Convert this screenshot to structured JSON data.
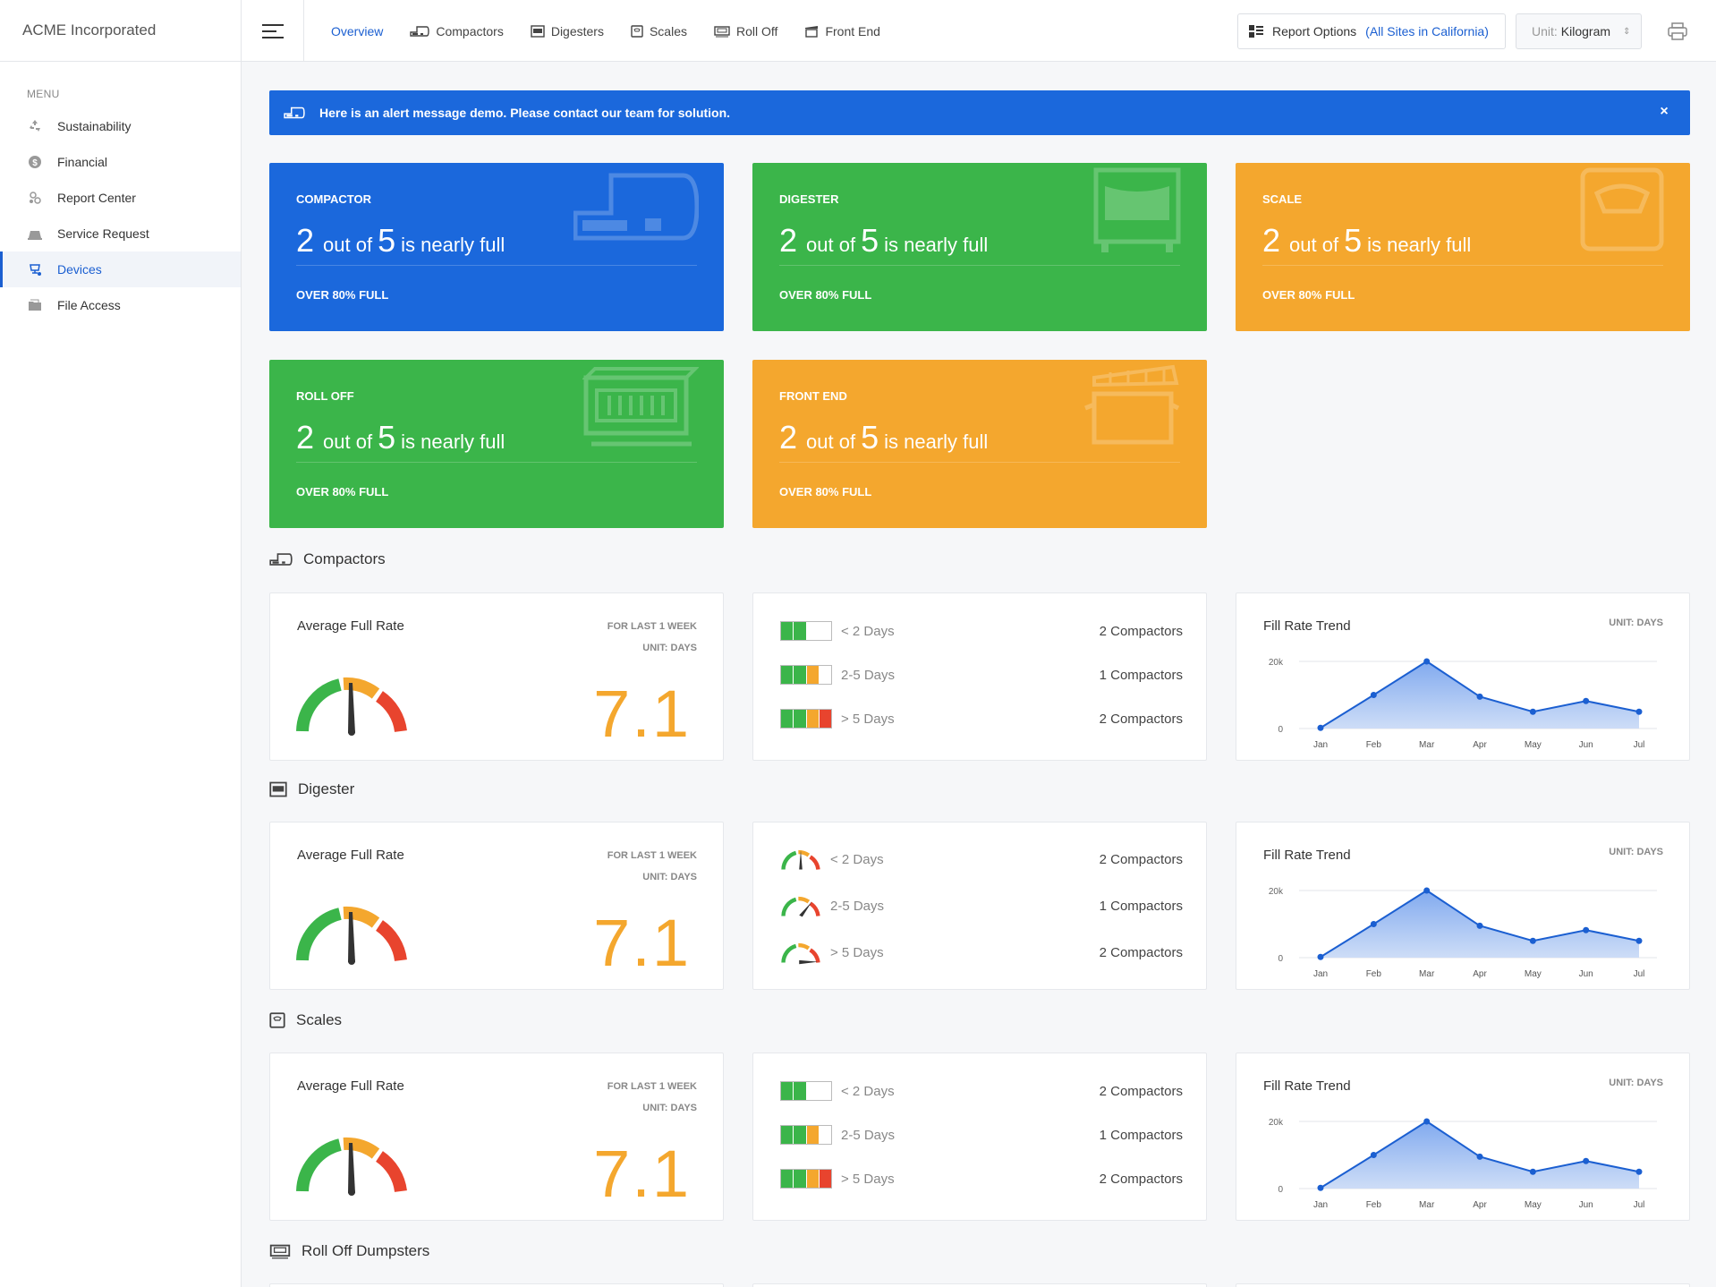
{
  "brand": "ACME Incorporated",
  "menu": {
    "title": "MENU",
    "items": [
      {
        "label": "Sustainability",
        "icon": "recycle-icon"
      },
      {
        "label": "Financial",
        "icon": "dollar-icon"
      },
      {
        "label": "Report Center",
        "icon": "report-icon"
      },
      {
        "label": "Service Request",
        "icon": "service-icon"
      },
      {
        "label": "Devices",
        "icon": "devices-icon",
        "active": true
      },
      {
        "label": "File Access",
        "icon": "folder-icon"
      }
    ]
  },
  "nav": {
    "items": [
      "Overview",
      "Compactors",
      "Digesters",
      "Scales",
      "Roll Off",
      "Front End"
    ]
  },
  "report_options": {
    "label": "Report Options",
    "scope": "(All Sites in California)"
  },
  "unit": {
    "label": "Unit:",
    "value": "Kilogram"
  },
  "alert": {
    "message": "Here is an alert message demo. Please contact our team for solution.",
    "close": "×"
  },
  "stats": [
    {
      "title": "COMPACTOR",
      "count": "2",
      "mid": "out of",
      "total": "5",
      "tail": "is nearly full",
      "foot": "OVER 80% FULL",
      "color": "#1b68dc"
    },
    {
      "title": "DIGESTER",
      "count": "2",
      "mid": "out of",
      "total": "5",
      "tail": "is nearly full",
      "foot": "OVER 80% FULL",
      "color": "#3bb54a"
    },
    {
      "title": "SCALE",
      "count": "2",
      "mid": "out of",
      "total": "5",
      "tail": "is nearly full",
      "foot": "OVER 80% FULL",
      "color": "#f4a72e"
    },
    {
      "title": "ROLL OFF",
      "count": "2",
      "mid": "out of",
      "total": "5",
      "tail": "is nearly full",
      "foot": "OVER 80% FULL",
      "color": "#3bb54a"
    },
    {
      "title": "FRONT END",
      "count": "2",
      "mid": "out of",
      "total": "5",
      "tail": "is nearly full",
      "foot": "OVER 80% FULL",
      "color": "#f4a72e"
    }
  ],
  "sections": [
    {
      "title": "Compactors"
    },
    {
      "title": "Digester"
    },
    {
      "title": "Scales"
    },
    {
      "title": "Roll Off Dumpsters"
    }
  ],
  "avg_panel": {
    "title": "Average Full Rate",
    "sub1": "FOR LAST 1 WEEK",
    "sub2": "UNIT: DAYS",
    "value": "7.1"
  },
  "dist_rows": [
    {
      "range": "< 2 Days",
      "count": "2 Compactors"
    },
    {
      "range": "2-5 Days",
      "count": "1 Compactors"
    },
    {
      "range": "> 5 Days",
      "count": "2 Compactors"
    }
  ],
  "trend_panel": {
    "title": "Fill Rate Trend",
    "unit": "UNIT: DAYS"
  },
  "chart_data": {
    "type": "area",
    "categories": [
      "Jan",
      "Feb",
      "Mar",
      "Apr",
      "May",
      "Jun",
      "Jul"
    ],
    "values": [
      200,
      10000,
      20000,
      9500,
      5000,
      8200,
      5000
    ],
    "ylim": [
      0,
      20000
    ],
    "yticks": [
      {
        "value": 0,
        "label": "0"
      },
      {
        "value": 20000,
        "label": "20k"
      }
    ],
    "grid": true
  },
  "colors": {
    "blue": "#1b68dc",
    "green": "#3bb54a",
    "orange": "#f4a72e",
    "red": "#e8442e"
  }
}
